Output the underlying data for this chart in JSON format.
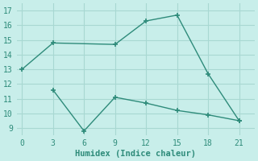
{
  "line1_x": [
    0,
    3,
    9,
    12,
    15,
    18,
    21
  ],
  "line1_y": [
    13,
    14.8,
    14.7,
    16.3,
    16.7,
    12.7,
    9.5
  ],
  "line2_x": [
    3,
    6,
    9,
    12,
    15,
    18,
    21
  ],
  "line2_y": [
    11.6,
    8.8,
    11.1,
    10.7,
    10.2,
    9.9,
    9.5
  ],
  "color": "#2e8b7a",
  "bg_color": "#c8eeea",
  "grid_color": "#a8d8d2",
  "xlabel": "Humidex (Indice chaleur)",
  "xlabel_fontsize": 7.5,
  "xticks": [
    0,
    3,
    6,
    9,
    12,
    15,
    18,
    21
  ],
  "yticks": [
    9,
    10,
    11,
    12,
    13,
    14,
    15,
    16,
    17
  ],
  "ylim": [
    8.5,
    17.5
  ],
  "xlim": [
    -0.5,
    22.5
  ],
  "marker": "+",
  "markersize": 5,
  "markeredgewidth": 1.2,
  "linewidth": 1.0,
  "tick_labelsize": 7
}
